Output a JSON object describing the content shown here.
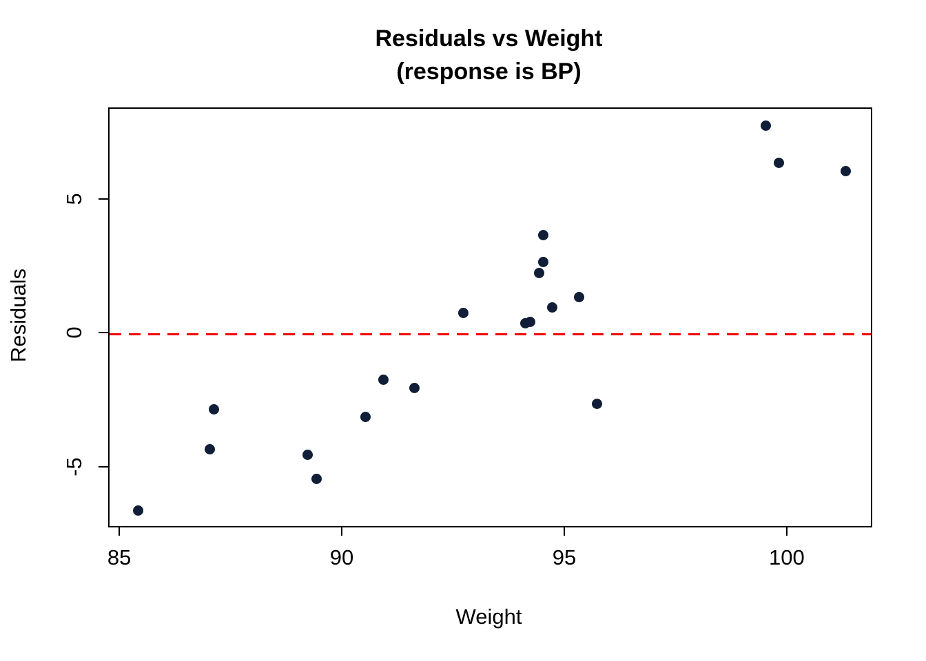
{
  "chart_data": {
    "type": "scatter",
    "title": "Residuals vs Weight",
    "subtitle": "(response is BP)",
    "xlabel": "Weight",
    "ylabel": "Residuals",
    "x_ticks": [
      85,
      90,
      95,
      100
    ],
    "y_ticks": [
      -5,
      0,
      5
    ],
    "xlim": [
      84.75,
      101.86
    ],
    "ylim": [
      -7.17,
      8.43
    ],
    "grid": false,
    "legend": false,
    "point_color": "#101f37",
    "reference_line": {
      "y": 0,
      "color": "#f20000",
      "style": "dashed"
    },
    "points": [
      {
        "x": 85.4,
        "y": -6.6
      },
      {
        "x": 87.0,
        "y": -4.3
      },
      {
        "x": 87.1,
        "y": -2.8
      },
      {
        "x": 89.2,
        "y": -4.5
      },
      {
        "x": 89.4,
        "y": -5.4
      },
      {
        "x": 90.5,
        "y": -3.1
      },
      {
        "x": 90.9,
        "y": -1.7
      },
      {
        "x": 91.6,
        "y": -2.0
      },
      {
        "x": 92.7,
        "y": 0.8
      },
      {
        "x": 94.1,
        "y": 0.4
      },
      {
        "x": 94.2,
        "y": 0.45
      },
      {
        "x": 94.4,
        "y": 2.3
      },
      {
        "x": 94.5,
        "y": 2.7
      },
      {
        "x": 94.5,
        "y": 3.7
      },
      {
        "x": 94.7,
        "y": 1.0
      },
      {
        "x": 95.3,
        "y": 1.4
      },
      {
        "x": 95.7,
        "y": -2.6
      },
      {
        "x": 99.5,
        "y": 7.8
      },
      {
        "x": 99.8,
        "y": 6.4
      },
      {
        "x": 101.3,
        "y": 6.1
      }
    ]
  }
}
